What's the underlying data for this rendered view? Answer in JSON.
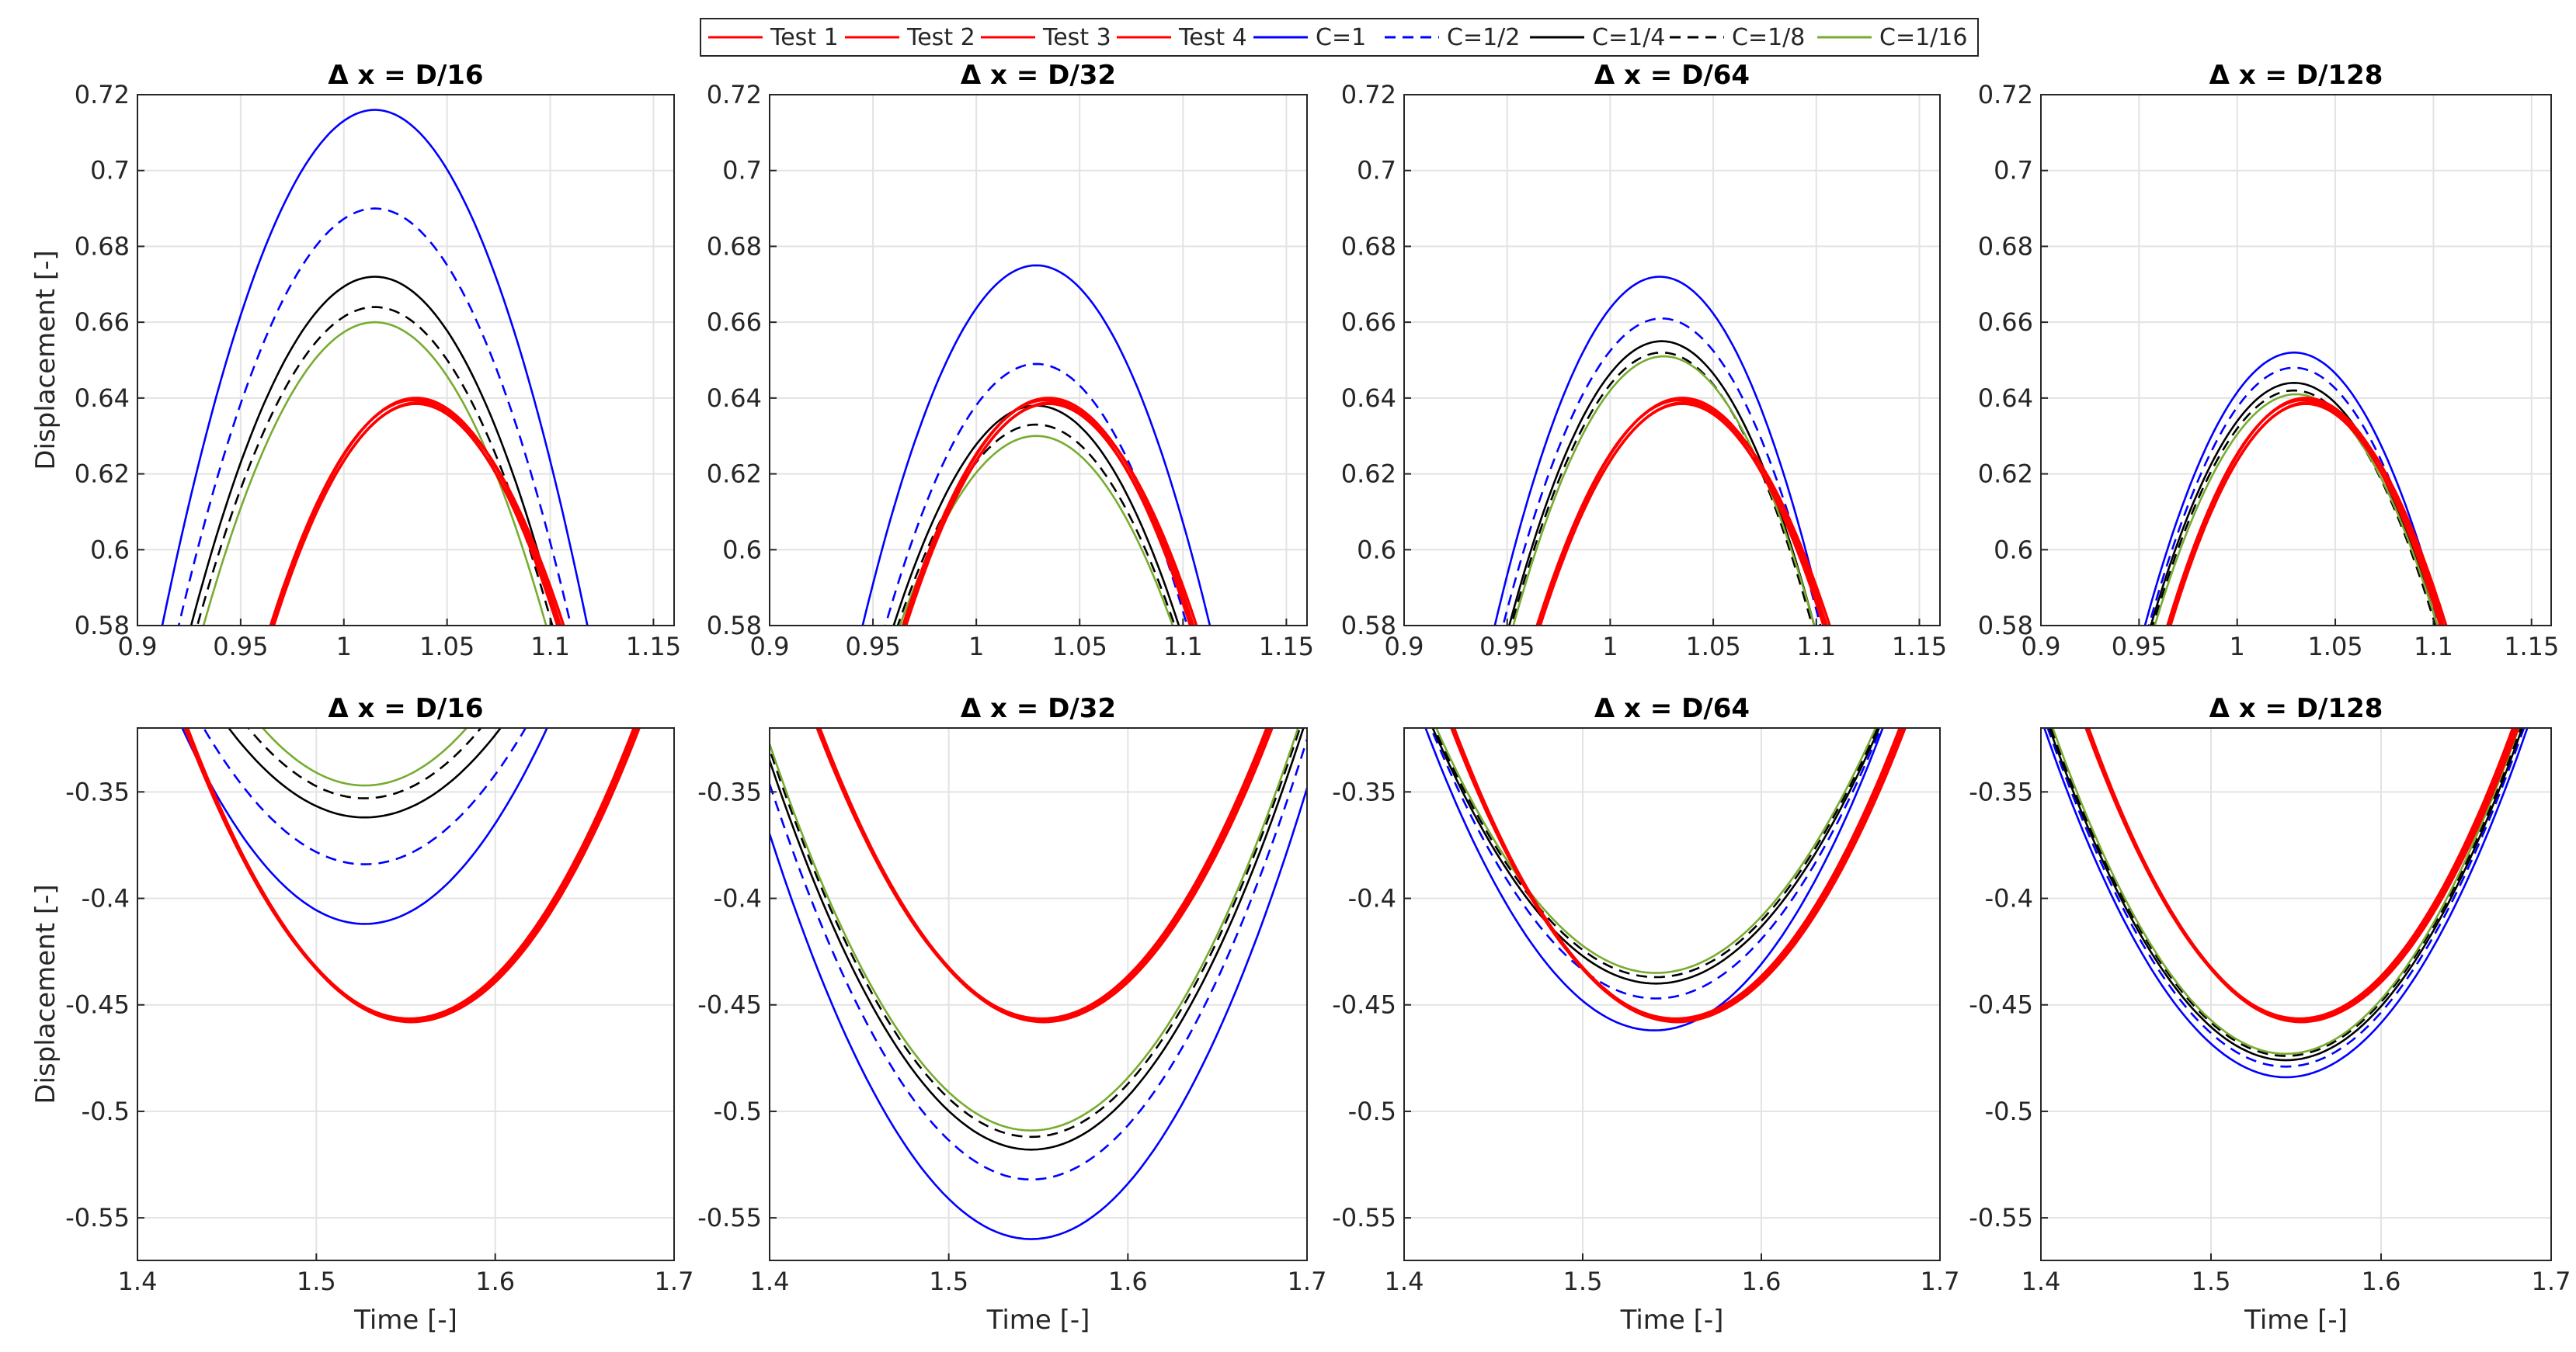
{
  "legend": {
    "entries": [
      {
        "label": "Test 1",
        "color": "#ff0000",
        "dash": "solid"
      },
      {
        "label": "Test 2",
        "color": "#ff0000",
        "dash": "solid"
      },
      {
        "label": "Test 3",
        "color": "#ff0000",
        "dash": "solid"
      },
      {
        "label": "Test 4",
        "color": "#ff0000",
        "dash": "solid"
      },
      {
        "label": "C=1",
        "color": "#0000ff",
        "dash": "solid"
      },
      {
        "label": "C=1/2",
        "color": "#0000ff",
        "dash": "dashed"
      },
      {
        "label": "C=1/4",
        "color": "#000000",
        "dash": "solid"
      },
      {
        "label": "C=1/8",
        "color": "#000000",
        "dash": "dashed"
      },
      {
        "label": "C=1/16",
        "color": "#77ac30",
        "dash": "solid"
      }
    ]
  },
  "chart_data": [
    {
      "type": "line",
      "title": "Δ x = D/16",
      "xlabel": "",
      "ylabel": "Displacement [-]",
      "xlim": [
        0.9,
        1.16
      ],
      "ylim": [
        0.58,
        0.72
      ],
      "xticks": [
        0.9,
        0.95,
        1,
        1.05,
        1.1,
        1.15
      ],
      "xtick_labels": [
        "0.9",
        "0.95",
        "1",
        "1.05",
        "1.1",
        "1.15"
      ],
      "yticks": [
        0.58,
        0.6,
        0.62,
        0.64,
        0.66,
        0.68,
        0.7,
        0.72
      ],
      "ytick_labels": [
        "0.58",
        "0.6",
        "0.62",
        "0.64",
        "0.66",
        "0.68",
        "0.7",
        "0.72"
      ],
      "grid": true,
      "mode": "max",
      "series": [
        {
          "name": "Test 1",
          "center": 1.035,
          "peak": 0.64,
          "x0": 0.965
        },
        {
          "name": "Test 2",
          "center": 1.034,
          "peak": 0.6395,
          "x0": 0.9645
        },
        {
          "name": "Test 3",
          "center": 1.036,
          "peak": 0.6388,
          "x0": 0.9655
        },
        {
          "name": "Test 4",
          "center": 1.035,
          "peak": 0.6385,
          "x0": 0.966
        },
        {
          "name": "C=1",
          "center": 1.015,
          "peak": 0.716,
          "x0": 0.912
        },
        {
          "name": "C=1/2",
          "center": 1.015,
          "peak": 0.69,
          "x0": 0.92
        },
        {
          "name": "C=1/4",
          "center": 1.015,
          "peak": 0.672,
          "x0": 0.926
        },
        {
          "name": "C=1/8",
          "center": 1.015,
          "peak": 0.664,
          "x0": 0.929
        },
        {
          "name": "C=1/16",
          "center": 1.015,
          "peak": 0.66,
          "x0": 0.932
        }
      ]
    },
    {
      "type": "line",
      "title": "Δ x = D/32",
      "xlabel": "",
      "ylabel": "",
      "xlim": [
        0.9,
        1.16
      ],
      "ylim": [
        0.58,
        0.72
      ],
      "xticks": [
        0.9,
        0.95,
        1,
        1.05,
        1.1,
        1.15
      ],
      "xtick_labels": [
        "0.9",
        "0.95",
        "1",
        "1.05",
        "1.1",
        "1.15"
      ],
      "yticks": [
        0.58,
        0.6,
        0.62,
        0.64,
        0.66,
        0.68,
        0.7,
        0.72
      ],
      "ytick_labels": [
        "0.58",
        "0.6",
        "0.62",
        "0.64",
        "0.66",
        "0.68",
        "0.7",
        "0.72"
      ],
      "grid": true,
      "mode": "max",
      "series": [
        {
          "name": "Test 1",
          "center": 1.035,
          "peak": 0.64,
          "x0": 0.965
        },
        {
          "name": "Test 2",
          "center": 1.034,
          "peak": 0.6395,
          "x0": 0.9645
        },
        {
          "name": "Test 3",
          "center": 1.036,
          "peak": 0.6388,
          "x0": 0.9655
        },
        {
          "name": "Test 4",
          "center": 1.035,
          "peak": 0.6385,
          "x0": 0.966
        },
        {
          "name": "C=1",
          "center": 1.029,
          "peak": 0.675,
          "x0": 0.945
        },
        {
          "name": "C=1/2",
          "center": 1.029,
          "peak": 0.649,
          "x0": 0.956
        },
        {
          "name": "C=1/4",
          "center": 1.029,
          "peak": 0.638,
          "x0": 0.96
        },
        {
          "name": "C=1/8",
          "center": 1.029,
          "peak": 0.633,
          "x0": 0.962
        },
        {
          "name": "C=1/16",
          "center": 1.029,
          "peak": 0.63,
          "x0": 0.963
        }
      ]
    },
    {
      "type": "line",
      "title": "Δ x = D/64",
      "xlabel": "",
      "ylabel": "",
      "xlim": [
        0.9,
        1.16
      ],
      "ylim": [
        0.58,
        0.72
      ],
      "xticks": [
        0.9,
        0.95,
        1,
        1.05,
        1.1,
        1.15
      ],
      "xtick_labels": [
        "0.9",
        "0.95",
        "1",
        "1.05",
        "1.1",
        "1.15"
      ],
      "yticks": [
        0.58,
        0.6,
        0.62,
        0.64,
        0.66,
        0.68,
        0.7,
        0.72
      ],
      "ytick_labels": [
        "0.58",
        "0.6",
        "0.62",
        "0.64",
        "0.66",
        "0.68",
        "0.7",
        "0.72"
      ],
      "grid": true,
      "mode": "max",
      "series": [
        {
          "name": "Test 1",
          "center": 1.035,
          "peak": 0.64,
          "x0": 0.965
        },
        {
          "name": "Test 2",
          "center": 1.034,
          "peak": 0.6395,
          "x0": 0.9645
        },
        {
          "name": "Test 3",
          "center": 1.036,
          "peak": 0.6388,
          "x0": 0.9655
        },
        {
          "name": "Test 4",
          "center": 1.035,
          "peak": 0.6385,
          "x0": 0.966
        },
        {
          "name": "C=1",
          "center": 1.024,
          "peak": 0.672,
          "x0": 0.944
        },
        {
          "name": "C=1/2",
          "center": 1.025,
          "peak": 0.661,
          "x0": 0.948
        },
        {
          "name": "C=1/4",
          "center": 1.025,
          "peak": 0.655,
          "x0": 0.951
        },
        {
          "name": "C=1/8",
          "center": 1.025,
          "peak": 0.652,
          "x0": 0.952
        },
        {
          "name": "C=1/16",
          "center": 1.026,
          "peak": 0.651,
          "x0": 0.953
        }
      ]
    },
    {
      "type": "line",
      "title": "Δ x = D/128",
      "xlabel": "",
      "ylabel": "",
      "xlim": [
        0.9,
        1.16
      ],
      "ylim": [
        0.58,
        0.72
      ],
      "xticks": [
        0.9,
        0.95,
        1,
        1.05,
        1.1,
        1.15
      ],
      "xtick_labels": [
        "0.9",
        "0.95",
        "1",
        "1.05",
        "1.1",
        "1.15"
      ],
      "yticks": [
        0.58,
        0.6,
        0.62,
        0.64,
        0.66,
        0.68,
        0.7,
        0.72
      ],
      "ytick_labels": [
        "0.58",
        "0.6",
        "0.62",
        "0.64",
        "0.66",
        "0.68",
        "0.7",
        "0.72"
      ],
      "grid": true,
      "mode": "max",
      "series": [
        {
          "name": "Test 1",
          "center": 1.035,
          "peak": 0.64,
          "x0": 0.965
        },
        {
          "name": "Test 2",
          "center": 1.034,
          "peak": 0.6395,
          "x0": 0.9645
        },
        {
          "name": "Test 3",
          "center": 1.036,
          "peak": 0.6388,
          "x0": 0.9655
        },
        {
          "name": "Test 4",
          "center": 1.035,
          "peak": 0.6385,
          "x0": 0.966
        },
        {
          "name": "C=1",
          "center": 1.029,
          "peak": 0.652,
          "x0": 0.953
        },
        {
          "name": "C=1/2",
          "center": 1.029,
          "peak": 0.648,
          "x0": 0.955
        },
        {
          "name": "C=1/4",
          "center": 1.029,
          "peak": 0.644,
          "x0": 0.956
        },
        {
          "name": "C=1/8",
          "center": 1.029,
          "peak": 0.642,
          "x0": 0.957
        },
        {
          "name": "C=1/16",
          "center": 1.03,
          "peak": 0.641,
          "x0": 0.958
        }
      ]
    },
    {
      "type": "line",
      "title": "Δ x = D/16",
      "xlabel": "Time [-]",
      "ylabel": "Displacement [-]",
      "xlim": [
        1.4,
        1.7
      ],
      "ylim": [
        -0.57,
        -0.32
      ],
      "xticks": [
        1.4,
        1.5,
        1.6,
        1.7
      ],
      "xtick_labels": [
        "1.4",
        "1.5",
        "1.6",
        "1.7"
      ],
      "yticks": [
        -0.55,
        -0.5,
        -0.45,
        -0.4,
        -0.35
      ],
      "ytick_labels": [
        "-0.55",
        "-0.5",
        "-0.45",
        "-0.4",
        "-0.35"
      ],
      "grid": true,
      "mode": "min",
      "series": [
        {
          "name": "Test 1",
          "center": 1.553,
          "peak": -0.457,
          "x0": 1.427
        },
        {
          "name": "Test 2",
          "center": 1.552,
          "peak": -0.4565,
          "x0": 1.4265
        },
        {
          "name": "Test 3",
          "center": 1.554,
          "peak": -0.4575,
          "x0": 1.4275
        },
        {
          "name": "Test 4",
          "center": 1.553,
          "peak": -0.458,
          "x0": 1.428
        },
        {
          "name": "C=1",
          "center": 1.527,
          "peak": -0.412,
          "x0": 1.425
        },
        {
          "name": "C=1/2",
          "center": 1.527,
          "peak": -0.384,
          "x0": 1.437
        },
        {
          "name": "C=1/4",
          "center": 1.527,
          "peak": -0.362,
          "x0": 1.451
        },
        {
          "name": "C=1/8",
          "center": 1.527,
          "peak": -0.353,
          "x0": 1.462
        },
        {
          "name": "C=1/16",
          "center": 1.527,
          "peak": -0.347,
          "x0": 1.47
        }
      ]
    },
    {
      "type": "line",
      "title": "Δ x = D/32",
      "xlabel": "Time [-]",
      "ylabel": "",
      "xlim": [
        1.4,
        1.7
      ],
      "ylim": [
        -0.57,
        -0.32
      ],
      "xticks": [
        1.4,
        1.5,
        1.6,
        1.7
      ],
      "xtick_labels": [
        "1.4",
        "1.5",
        "1.6",
        "1.7"
      ],
      "yticks": [
        -0.55,
        -0.5,
        -0.45,
        -0.4,
        -0.35
      ],
      "ytick_labels": [
        "-0.55",
        "-0.5",
        "-0.45",
        "-0.4",
        "-0.35"
      ],
      "grid": true,
      "mode": "min",
      "series": [
        {
          "name": "Test 1",
          "center": 1.553,
          "peak": -0.457,
          "x0": 1.427
        },
        {
          "name": "Test 2",
          "center": 1.552,
          "peak": -0.4565,
          "x0": 1.4265
        },
        {
          "name": "Test 3",
          "center": 1.554,
          "peak": -0.4575,
          "x0": 1.4275
        },
        {
          "name": "Test 4",
          "center": 1.553,
          "peak": -0.458,
          "x0": 1.428
        },
        {
          "name": "C=1",
          "center": 1.546,
          "peak": -0.56,
          "x0": 1.382
        },
        {
          "name": "C=1/2",
          "center": 1.546,
          "peak": -0.532,
          "x0": 1.39
        },
        {
          "name": "C=1/4",
          "center": 1.546,
          "peak": -0.518,
          "x0": 1.394
        },
        {
          "name": "C=1/8",
          "center": 1.546,
          "peak": -0.512,
          "x0": 1.396
        },
        {
          "name": "C=1/16",
          "center": 1.546,
          "peak": -0.509,
          "x0": 1.397
        }
      ]
    },
    {
      "type": "line",
      "title": "Δ x = D/64",
      "xlabel": "Time [-]",
      "ylabel": "",
      "xlim": [
        1.4,
        1.7
      ],
      "ylim": [
        -0.57,
        -0.32
      ],
      "xticks": [
        1.4,
        1.5,
        1.6,
        1.7
      ],
      "xtick_labels": [
        "1.4",
        "1.5",
        "1.6",
        "1.7"
      ],
      "yticks": [
        -0.55,
        -0.5,
        -0.45,
        -0.4,
        -0.35
      ],
      "ytick_labels": [
        "-0.55",
        "-0.5",
        "-0.45",
        "-0.4",
        "-0.35"
      ],
      "grid": true,
      "mode": "min",
      "series": [
        {
          "name": "Test 1",
          "center": 1.553,
          "peak": -0.457,
          "x0": 1.427
        },
        {
          "name": "Test 2",
          "center": 1.552,
          "peak": -0.4565,
          "x0": 1.4265
        },
        {
          "name": "Test 3",
          "center": 1.554,
          "peak": -0.4575,
          "x0": 1.4275
        },
        {
          "name": "Test 4",
          "center": 1.553,
          "peak": -0.458,
          "x0": 1.428
        },
        {
          "name": "C=1",
          "center": 1.54,
          "peak": -0.462,
          "x0": 1.412
        },
        {
          "name": "C=1/2",
          "center": 1.541,
          "peak": -0.447,
          "x0": 1.415
        },
        {
          "name": "C=1/4",
          "center": 1.541,
          "peak": -0.44,
          "x0": 1.416
        },
        {
          "name": "C=1/8",
          "center": 1.541,
          "peak": -0.437,
          "x0": 1.417
        },
        {
          "name": "C=1/16",
          "center": 1.541,
          "peak": -0.435,
          "x0": 1.418
        }
      ]
    },
    {
      "type": "line",
      "title": "Δ x = D/128",
      "xlabel": "Time [-]",
      "ylabel": "",
      "xlim": [
        1.4,
        1.7
      ],
      "ylim": [
        -0.57,
        -0.32
      ],
      "xticks": [
        1.4,
        1.5,
        1.6,
        1.7
      ],
      "xtick_labels": [
        "1.4",
        "1.5",
        "1.6",
        "1.7"
      ],
      "yticks": [
        -0.55,
        -0.5,
        -0.45,
        -0.4,
        -0.35
      ],
      "ytick_labels": [
        "-0.55",
        "-0.5",
        "-0.45",
        "-0.4",
        "-0.35"
      ],
      "grid": true,
      "mode": "min",
      "series": [
        {
          "name": "Test 1",
          "center": 1.553,
          "peak": -0.457,
          "x0": 1.427
        },
        {
          "name": "Test 2",
          "center": 1.552,
          "peak": -0.4565,
          "x0": 1.4265
        },
        {
          "name": "Test 3",
          "center": 1.554,
          "peak": -0.4575,
          "x0": 1.4275
        },
        {
          "name": "Test 4",
          "center": 1.553,
          "peak": -0.458,
          "x0": 1.428
        },
        {
          "name": "C=1",
          "center": 1.544,
          "peak": -0.484,
          "x0": 1.402
        },
        {
          "name": "C=1/2",
          "center": 1.544,
          "peak": -0.479,
          "x0": 1.404
        },
        {
          "name": "C=1/4",
          "center": 1.544,
          "peak": -0.476,
          "x0": 1.405
        },
        {
          "name": "C=1/8",
          "center": 1.544,
          "peak": -0.474,
          "x0": 1.406
        },
        {
          "name": "C=1/16",
          "center": 1.544,
          "peak": -0.473,
          "x0": 1.407
        }
      ]
    }
  ]
}
